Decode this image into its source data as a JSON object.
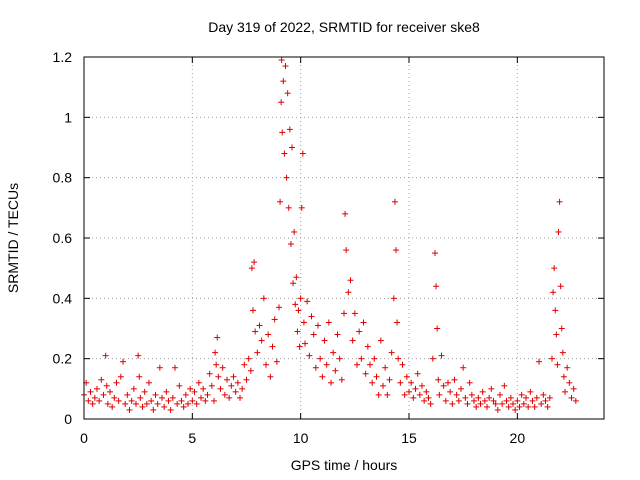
{
  "chart_data": {
    "type": "scatter",
    "title": "Day 319 of 2022, SRMTID for receiver ske8",
    "xlabel": "GPS time / hours",
    "ylabel": "SRMTID / TECUs",
    "xlim": [
      0,
      24
    ],
    "ylim": [
      0,
      1.2
    ],
    "xticks": [
      0,
      5,
      10,
      15,
      20
    ],
    "xtick_labels": [
      "0",
      "5",
      "10",
      "15",
      "20"
    ],
    "yticks": [
      0,
      0.2,
      0.4,
      0.6,
      0.8,
      1,
      1.2
    ],
    "ytick_labels": [
      "0",
      "0.2",
      "0.4",
      "0.6",
      "0.8",
      "1",
      "1.2"
    ],
    "grid": true,
    "marker": "+",
    "color": "#e00000",
    "series": [
      {
        "name": "SRMTID",
        "points": [
          [
            0.0,
            0.08
          ],
          [
            0.1,
            0.12
          ],
          [
            0.2,
            0.06
          ],
          [
            0.3,
            0.09
          ],
          [
            0.4,
            0.05
          ],
          [
            0.5,
            0.07
          ],
          [
            0.6,
            0.1
          ],
          [
            0.7,
            0.06
          ],
          [
            0.8,
            0.13
          ],
          [
            0.9,
            0.08
          ],
          [
            1.0,
            0.21
          ],
          [
            1.05,
            0.11
          ],
          [
            1.1,
            0.05
          ],
          [
            1.2,
            0.09
          ],
          [
            1.3,
            0.04
          ],
          [
            1.4,
            0.07
          ],
          [
            1.5,
            0.12
          ],
          [
            1.6,
            0.06
          ],
          [
            1.7,
            0.14
          ],
          [
            1.8,
            0.19
          ],
          [
            1.9,
            0.05
          ],
          [
            2.0,
            0.08
          ],
          [
            2.1,
            0.03
          ],
          [
            2.2,
            0.06
          ],
          [
            2.3,
            0.1
          ],
          [
            2.4,
            0.05
          ],
          [
            2.5,
            0.21
          ],
          [
            2.55,
            0.14
          ],
          [
            2.6,
            0.07
          ],
          [
            2.7,
            0.04
          ],
          [
            2.8,
            0.09
          ],
          [
            2.9,
            0.05
          ],
          [
            3.0,
            0.12
          ],
          [
            3.1,
            0.06
          ],
          [
            3.2,
            0.03
          ],
          [
            3.3,
            0.08
          ],
          [
            3.4,
            0.05
          ],
          [
            3.5,
            0.17
          ],
          [
            3.6,
            0.07
          ],
          [
            3.7,
            0.04
          ],
          [
            3.8,
            0.09
          ],
          [
            3.9,
            0.06
          ],
          [
            4.0,
            0.03
          ],
          [
            4.1,
            0.07
          ],
          [
            4.2,
            0.17
          ],
          [
            4.3,
            0.05
          ],
          [
            4.4,
            0.11
          ],
          [
            4.5,
            0.06
          ],
          [
            4.6,
            0.04
          ],
          [
            4.7,
            0.08
          ],
          [
            4.8,
            0.05
          ],
          [
            4.9,
            0.1
          ],
          [
            5.0,
            0.06
          ],
          [
            5.1,
            0.09
          ],
          [
            5.2,
            0.05
          ],
          [
            5.3,
            0.12
          ],
          [
            5.4,
            0.07
          ],
          [
            5.5,
            0.1
          ],
          [
            5.6,
            0.06
          ],
          [
            5.7,
            0.08
          ],
          [
            5.8,
            0.15
          ],
          [
            5.9,
            0.11
          ],
          [
            6.0,
            0.06
          ],
          [
            6.05,
            0.22
          ],
          [
            6.1,
            0.18
          ],
          [
            6.15,
            0.27
          ],
          [
            6.2,
            0.14
          ],
          [
            6.3,
            0.1
          ],
          [
            6.4,
            0.17
          ],
          [
            6.5,
            0.08
          ],
          [
            6.6,
            0.13
          ],
          [
            6.7,
            0.07
          ],
          [
            6.8,
            0.11
          ],
          [
            6.9,
            0.14
          ],
          [
            7.0,
            0.09
          ],
          [
            7.1,
            0.12
          ],
          [
            7.2,
            0.07
          ],
          [
            7.3,
            0.1
          ],
          [
            7.4,
            0.18
          ],
          [
            7.5,
            0.13
          ],
          [
            7.6,
            0.2
          ],
          [
            7.7,
            0.16
          ],
          [
            7.75,
            0.5
          ],
          [
            7.8,
            0.36
          ],
          [
            7.85,
            0.52
          ],
          [
            7.9,
            0.29
          ],
          [
            8.0,
            0.22
          ],
          [
            8.1,
            0.31
          ],
          [
            8.2,
            0.26
          ],
          [
            8.3,
            0.4
          ],
          [
            8.4,
            0.18
          ],
          [
            8.5,
            0.28
          ],
          [
            8.6,
            0.14
          ],
          [
            8.7,
            0.24
          ],
          [
            8.8,
            0.33
          ],
          [
            8.9,
            0.19
          ],
          [
            9.0,
            0.37
          ],
          [
            9.05,
            0.72
          ],
          [
            9.1,
            1.05
          ],
          [
            9.12,
            1.19
          ],
          [
            9.15,
            0.95
          ],
          [
            9.2,
            1.12
          ],
          [
            9.25,
            0.88
          ],
          [
            9.3,
            1.17
          ],
          [
            9.35,
            0.8
          ],
          [
            9.4,
            1.08
          ],
          [
            9.45,
            0.7
          ],
          [
            9.5,
            0.96
          ],
          [
            9.55,
            0.58
          ],
          [
            9.6,
            0.9
          ],
          [
            9.65,
            0.45
          ],
          [
            9.7,
            0.62
          ],
          [
            9.75,
            0.38
          ],
          [
            9.8,
            0.47
          ],
          [
            9.85,
            0.29
          ],
          [
            9.9,
            0.36
          ],
          [
            9.95,
            0.24
          ],
          [
            10.0,
            0.4
          ],
          [
            10.05,
            0.7
          ],
          [
            10.1,
            0.88
          ],
          [
            10.15,
            0.32
          ],
          [
            10.2,
            0.25
          ],
          [
            10.3,
            0.39
          ],
          [
            10.4,
            0.21
          ],
          [
            10.5,
            0.34
          ],
          [
            10.6,
            0.28
          ],
          [
            10.7,
            0.17
          ],
          [
            10.8,
            0.31
          ],
          [
            10.9,
            0.2
          ],
          [
            11.0,
            0.14
          ],
          [
            11.1,
            0.26
          ],
          [
            11.2,
            0.18
          ],
          [
            11.3,
            0.32
          ],
          [
            11.4,
            0.12
          ],
          [
            11.5,
            0.22
          ],
          [
            11.6,
            0.16
          ],
          [
            11.7,
            0.28
          ],
          [
            11.8,
            0.2
          ],
          [
            11.9,
            0.13
          ],
          [
            12.0,
            0.35
          ],
          [
            12.05,
            0.68
          ],
          [
            12.1,
            0.56
          ],
          [
            12.2,
            0.42
          ],
          [
            12.3,
            0.46
          ],
          [
            12.4,
            0.26
          ],
          [
            12.5,
            0.35
          ],
          [
            12.6,
            0.18
          ],
          [
            12.7,
            0.29
          ],
          [
            12.8,
            0.2
          ],
          [
            12.9,
            0.32
          ],
          [
            13.0,
            0.15
          ],
          [
            13.1,
            0.24
          ],
          [
            13.2,
            0.18
          ],
          [
            13.3,
            0.12
          ],
          [
            13.4,
            0.2
          ],
          [
            13.5,
            0.14
          ],
          [
            13.6,
            0.08
          ],
          [
            13.7,
            0.26
          ],
          [
            13.8,
            0.11
          ],
          [
            13.9,
            0.17
          ],
          [
            14.0,
            0.08
          ],
          [
            14.1,
            0.13
          ],
          [
            14.2,
            0.22
          ],
          [
            14.3,
            0.4
          ],
          [
            14.35,
            0.72
          ],
          [
            14.4,
            0.56
          ],
          [
            14.45,
            0.32
          ],
          [
            14.5,
            0.2
          ],
          [
            14.6,
            0.12
          ],
          [
            14.7,
            0.18
          ],
          [
            14.8,
            0.08
          ],
          [
            14.9,
            0.14
          ],
          [
            15.0,
            0.09
          ],
          [
            15.1,
            0.12
          ],
          [
            15.2,
            0.07
          ],
          [
            15.3,
            0.1
          ],
          [
            15.4,
            0.15
          ],
          [
            15.5,
            0.08
          ],
          [
            15.6,
            0.11
          ],
          [
            15.7,
            0.06
          ],
          [
            15.8,
            0.09
          ],
          [
            15.9,
            0.07
          ],
          [
            16.0,
            0.05
          ],
          [
            16.1,
            0.2
          ],
          [
            16.2,
            0.55
          ],
          [
            16.25,
            0.44
          ],
          [
            16.3,
            0.3
          ],
          [
            16.35,
            0.13
          ],
          [
            16.4,
            0.08
          ],
          [
            16.5,
            0.21
          ],
          [
            16.6,
            0.11
          ],
          [
            16.7,
            0.06
          ],
          [
            16.8,
            0.12
          ],
          [
            16.9,
            0.09
          ],
          [
            17.0,
            0.05
          ],
          [
            17.1,
            0.13
          ],
          [
            17.2,
            0.08
          ],
          [
            17.3,
            0.06
          ],
          [
            17.4,
            0.1
          ],
          [
            17.5,
            0.17
          ],
          [
            17.6,
            0.07
          ],
          [
            17.7,
            0.05
          ],
          [
            17.8,
            0.12
          ],
          [
            17.9,
            0.08
          ],
          [
            18.0,
            0.06
          ],
          [
            18.1,
            0.04
          ],
          [
            18.2,
            0.07
          ],
          [
            18.3,
            0.05
          ],
          [
            18.4,
            0.09
          ],
          [
            18.5,
            0.06
          ],
          [
            18.6,
            0.04
          ],
          [
            18.7,
            0.07
          ],
          [
            18.8,
            0.1
          ],
          [
            18.9,
            0.06
          ],
          [
            19.0,
            0.05
          ],
          [
            19.1,
            0.03
          ],
          [
            19.2,
            0.08
          ],
          [
            19.3,
            0.05
          ],
          [
            19.4,
            0.11
          ],
          [
            19.5,
            0.06
          ],
          [
            19.6,
            0.04
          ],
          [
            19.7,
            0.07
          ],
          [
            19.8,
            0.05
          ],
          [
            19.9,
            0.03
          ],
          [
            20.0,
            0.06
          ],
          [
            20.1,
            0.04
          ],
          [
            20.2,
            0.08
          ],
          [
            20.3,
            0.05
          ],
          [
            20.4,
            0.07
          ],
          [
            20.5,
            0.04
          ],
          [
            20.6,
            0.09
          ],
          [
            20.7,
            0.06
          ],
          [
            20.8,
            0.04
          ],
          [
            20.9,
            0.07
          ],
          [
            21.0,
            0.19
          ],
          [
            21.1,
            0.05
          ],
          [
            21.2,
            0.08
          ],
          [
            21.3,
            0.06
          ],
          [
            21.4,
            0.04
          ],
          [
            21.5,
            0.07
          ],
          [
            21.6,
            0.2
          ],
          [
            21.65,
            0.42
          ],
          [
            21.7,
            0.5
          ],
          [
            21.75,
            0.36
          ],
          [
            21.8,
            0.28
          ],
          [
            21.85,
            0.18
          ],
          [
            21.9,
            0.62
          ],
          [
            21.95,
            0.72
          ],
          [
            22.0,
            0.44
          ],
          [
            22.05,
            0.3
          ],
          [
            22.1,
            0.22
          ],
          [
            22.15,
            0.14
          ],
          [
            22.2,
            0.09
          ],
          [
            22.3,
            0.17
          ],
          [
            22.4,
            0.12
          ],
          [
            22.5,
            0.07
          ],
          [
            22.6,
            0.1
          ],
          [
            22.7,
            0.06
          ]
        ]
      }
    ]
  }
}
